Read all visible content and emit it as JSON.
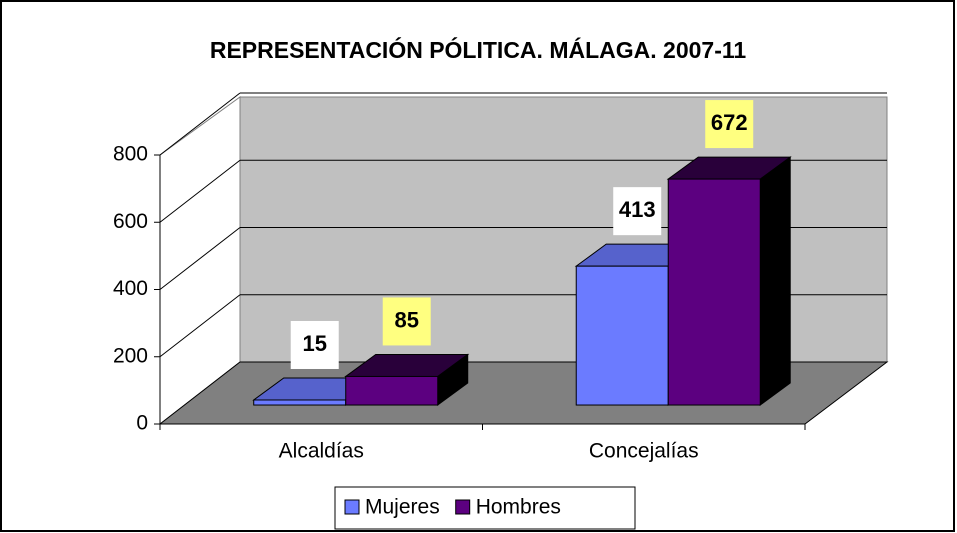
{
  "chart_data": {
    "type": "bar3d",
    "title": "REPRESENTACIÓN PÓLITICA. MÁLAGA. 2007-11",
    "categories": [
      "Alcaldías",
      "Concejalías"
    ],
    "series": [
      {
        "name": "Mujeres",
        "color": "#6b7bff",
        "values": [
          15,
          413
        ]
      },
      {
        "name": "Hombres",
        "color": "#5c0080",
        "values": [
          85,
          672
        ]
      }
    ],
    "ylim": [
      0,
      800
    ],
    "yticks": [
      0,
      200,
      400,
      600,
      800
    ],
    "grid": true,
    "legend": "bottom"
  }
}
